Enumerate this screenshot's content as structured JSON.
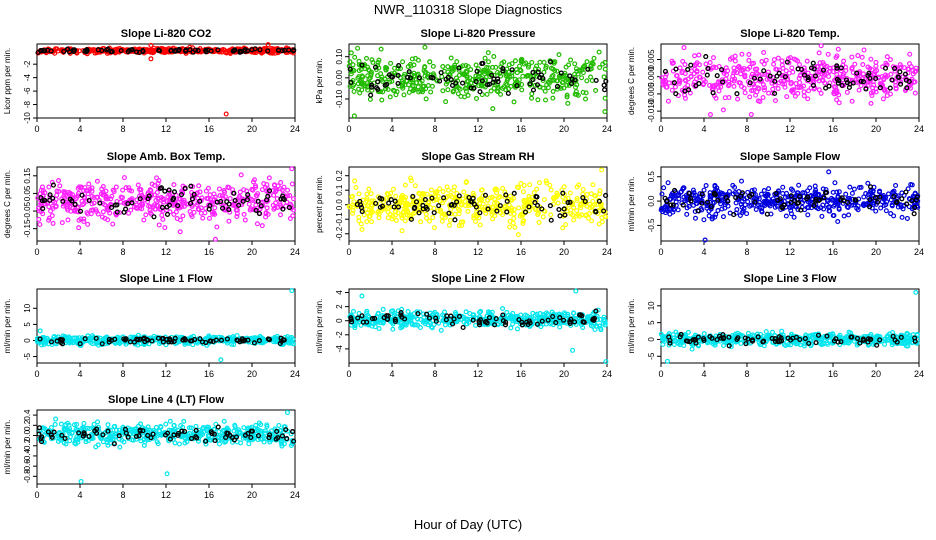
{
  "page_title": "NWR_110318  Slope Diagnostics",
  "x_axis_label": "Hour of Day (UTC)",
  "colors": {
    "red": "#ff0000",
    "green": "#22bb00",
    "magenta": "#ff22ff",
    "yellow": "#ffff00",
    "blue": "#0000dd",
    "cyan": "#00e5ee",
    "overlay": "#000000"
  },
  "chart_data": [
    {
      "type": "scatter",
      "title": "Slope Li-820 CO2",
      "ylabel": "Licor ppm per min.",
      "color": "red",
      "xlim": [
        0,
        24
      ],
      "xticks": [
        0,
        4,
        8,
        12,
        16,
        20,
        24
      ],
      "ylim": [
        -10,
        1
      ],
      "yticks": [
        -10,
        -8,
        -6,
        -4,
        -2
      ],
      "ytick_labels": [
        "-10",
        "-8",
        "-6",
        "-4",
        "-2"
      ],
      "spread": 0.25,
      "center": 0.0,
      "outliers": [
        {
          "x": 17.6,
          "y": -9.4
        },
        {
          "x": 10.6,
          "y": -1.2
        },
        {
          "x": 10.6,
          "y": 0.8
        },
        {
          "x": 21.5,
          "y": 0.9
        }
      ],
      "seed": 11
    },
    {
      "type": "scatter",
      "title": "Slope Li-820 Pressure",
      "ylabel": "kPa per min.",
      "color": "green",
      "xlim": [
        0,
        24
      ],
      "xticks": [
        0,
        4,
        8,
        12,
        16,
        20,
        24
      ],
      "ylim": [
        -0.19,
        0.16
      ],
      "yticks": [
        -0.1,
        0.0,
        0.1
      ],
      "ytick_labels": [
        "-0.10",
        "0.00",
        "0.10"
      ],
      "spread": 0.07,
      "center": 0.0,
      "outliers": [
        {
          "x": 0.8,
          "y": 0.14
        },
        {
          "x": 0.5,
          "y": -0.18
        },
        {
          "x": 23.8,
          "y": -0.16
        }
      ],
      "seed": 23
    },
    {
      "type": "scatter",
      "title": "Slope Li-820 Temp.",
      "ylabel": "degrees C per min.",
      "color": "magenta",
      "xlim": [
        0,
        24
      ],
      "xticks": [
        0,
        4,
        8,
        12,
        16,
        20,
        24
      ],
      "ylim": [
        -0.012,
        0.0095
      ],
      "yticks": [
        -0.01,
        -0.005,
        0.0,
        0.005
      ],
      "ytick_labels": [
        "-0.010",
        "-0.005",
        "0.000",
        "0.005"
      ],
      "spread": 0.0045,
      "center": 0.0,
      "outliers": [
        {
          "x": 14.9,
          "y": 0.009
        },
        {
          "x": 4.6,
          "y": -0.011
        },
        {
          "x": 8.4,
          "y": -0.011
        }
      ],
      "seed": 37
    },
    {
      "type": "scatter",
      "title": "Slope Amb. Box Temp.",
      "ylabel": "degrees C per min.",
      "color": "magenta",
      "xlim": [
        0,
        24
      ],
      "xticks": [
        0,
        4,
        8,
        12,
        16,
        20,
        24
      ],
      "ylim": [
        -0.22,
        0.2
      ],
      "yticks": [
        -0.15,
        -0.05,
        0.05,
        0.15
      ],
      "ytick_labels": [
        "-0.15",
        "-0.05",
        "0.05",
        "0.15"
      ],
      "spread": 0.08,
      "center": 0.0,
      "outliers": [
        {
          "x": 16.6,
          "y": -0.21
        },
        {
          "x": 23.7,
          "y": 0.19
        }
      ],
      "seed": 41
    },
    {
      "type": "scatter",
      "title": "Slope Gas Stream RH",
      "ylabel": "percent per min.",
      "color": "yellow",
      "xlim": [
        0,
        24
      ],
      "xticks": [
        0,
        4,
        8,
        12,
        16,
        20,
        24
      ],
      "ylim": [
        -0.25,
        0.26
      ],
      "yticks": [
        -0.2,
        -0.1,
        0.0,
        0.1,
        0.2
      ],
      "ytick_labels": [
        "-0.2",
        "-0.1",
        "0.0",
        "0.1",
        "0.2"
      ],
      "spread": 0.1,
      "center": 0.0,
      "outliers": [
        {
          "x": 23.5,
          "y": 0.24
        }
      ],
      "seed": 53
    },
    {
      "type": "scatter",
      "title": "Slope Sample Flow",
      "ylabel": "ml/min per min.",
      "color": "blue",
      "xlim": [
        0,
        24
      ],
      "xticks": [
        0,
        4,
        8,
        12,
        16,
        20,
        24
      ],
      "ylim": [
        -0.82,
        0.7
      ],
      "yticks": [
        -0.5,
        0.0,
        0.5
      ],
      "ytick_labels": [
        "-0.5",
        "0.0",
        "0.5"
      ],
      "spread": 0.22,
      "center": 0.0,
      "outliers": [
        {
          "x": 4.1,
          "y": -0.8
        },
        {
          "x": 15.6,
          "y": 0.6
        }
      ],
      "seed": 61
    },
    {
      "type": "scatter",
      "title": "Slope Line 1 Flow",
      "ylabel": "ml/min per min.",
      "color": "cyan",
      "xlim": [
        0,
        24
      ],
      "xticks": [
        0,
        4,
        8,
        12,
        16,
        20,
        24
      ],
      "ylim": [
        -7,
        16
      ],
      "yticks": [
        -5,
        0,
        5,
        10
      ],
      "ytick_labels": [
        "-5",
        "0",
        "5",
        "10"
      ],
      "spread": 0.9,
      "center": 0.0,
      "outliers": [
        {
          "x": 23.7,
          "y": 15.5
        },
        {
          "x": 17.1,
          "y": -6
        },
        {
          "x": 0.3,
          "y": 3
        }
      ],
      "seed": 71
    },
    {
      "type": "scatter",
      "title": "Slope Line 2 Flow",
      "ylabel": "ml/min per min.",
      "color": "cyan",
      "xlim": [
        0,
        24
      ],
      "xticks": [
        0,
        4,
        8,
        12,
        16,
        20,
        24
      ],
      "ylim": [
        -6,
        4.5
      ],
      "yticks": [
        -4,
        -2,
        0,
        2,
        4
      ],
      "ytick_labels": [
        "-4",
        "-2",
        "0",
        "2",
        "4"
      ],
      "spread": 0.8,
      "center": 0.2,
      "outliers": [
        {
          "x": 1.2,
          "y": 3.5
        },
        {
          "x": 20.8,
          "y": -4.2
        },
        {
          "x": 23.9,
          "y": -5.8
        },
        {
          "x": 21.1,
          "y": 4.2
        }
      ],
      "seed": 83
    },
    {
      "type": "scatter",
      "title": "Slope Line 3 Flow",
      "ylabel": "ml/min per min.",
      "color": "cyan",
      "xlim": [
        0,
        24
      ],
      "xticks": [
        0,
        4,
        8,
        12,
        16,
        20,
        24
      ],
      "ylim": [
        -7,
        15
      ],
      "yticks": [
        -5,
        0,
        5,
        10
      ],
      "ytick_labels": [
        "-5",
        "0",
        "5",
        "10"
      ],
      "spread": 1.3,
      "center": 0.0,
      "outliers": [
        {
          "x": 23.7,
          "y": 14
        },
        {
          "x": 0.6,
          "y": -6.5
        }
      ],
      "seed": 97
    },
    {
      "type": "scatter",
      "title": "Slope Line 4 (LT) Flow",
      "ylabel": "ml/min per min.",
      "color": "cyan",
      "xlim": [
        0,
        24
      ],
      "xticks": [
        0,
        4,
        8,
        12,
        16,
        20,
        24
      ],
      "ylim": [
        -0.95,
        0.5
      ],
      "yticks": [
        -0.8,
        -0.6,
        -0.4,
        -0.2,
        0.0,
        0.2,
        0.4
      ],
      "ytick_labels": [
        "-0.8",
        "-0.6",
        "-0.4",
        "-0.2",
        "0.0",
        "0.2",
        "0.4"
      ],
      "spread": 0.14,
      "center": 0.02,
      "outliers": [
        {
          "x": 4.1,
          "y": -0.9
        },
        {
          "x": 12.1,
          "y": -0.75
        },
        {
          "x": 23.3,
          "y": 0.45
        }
      ],
      "seed": 103
    }
  ]
}
